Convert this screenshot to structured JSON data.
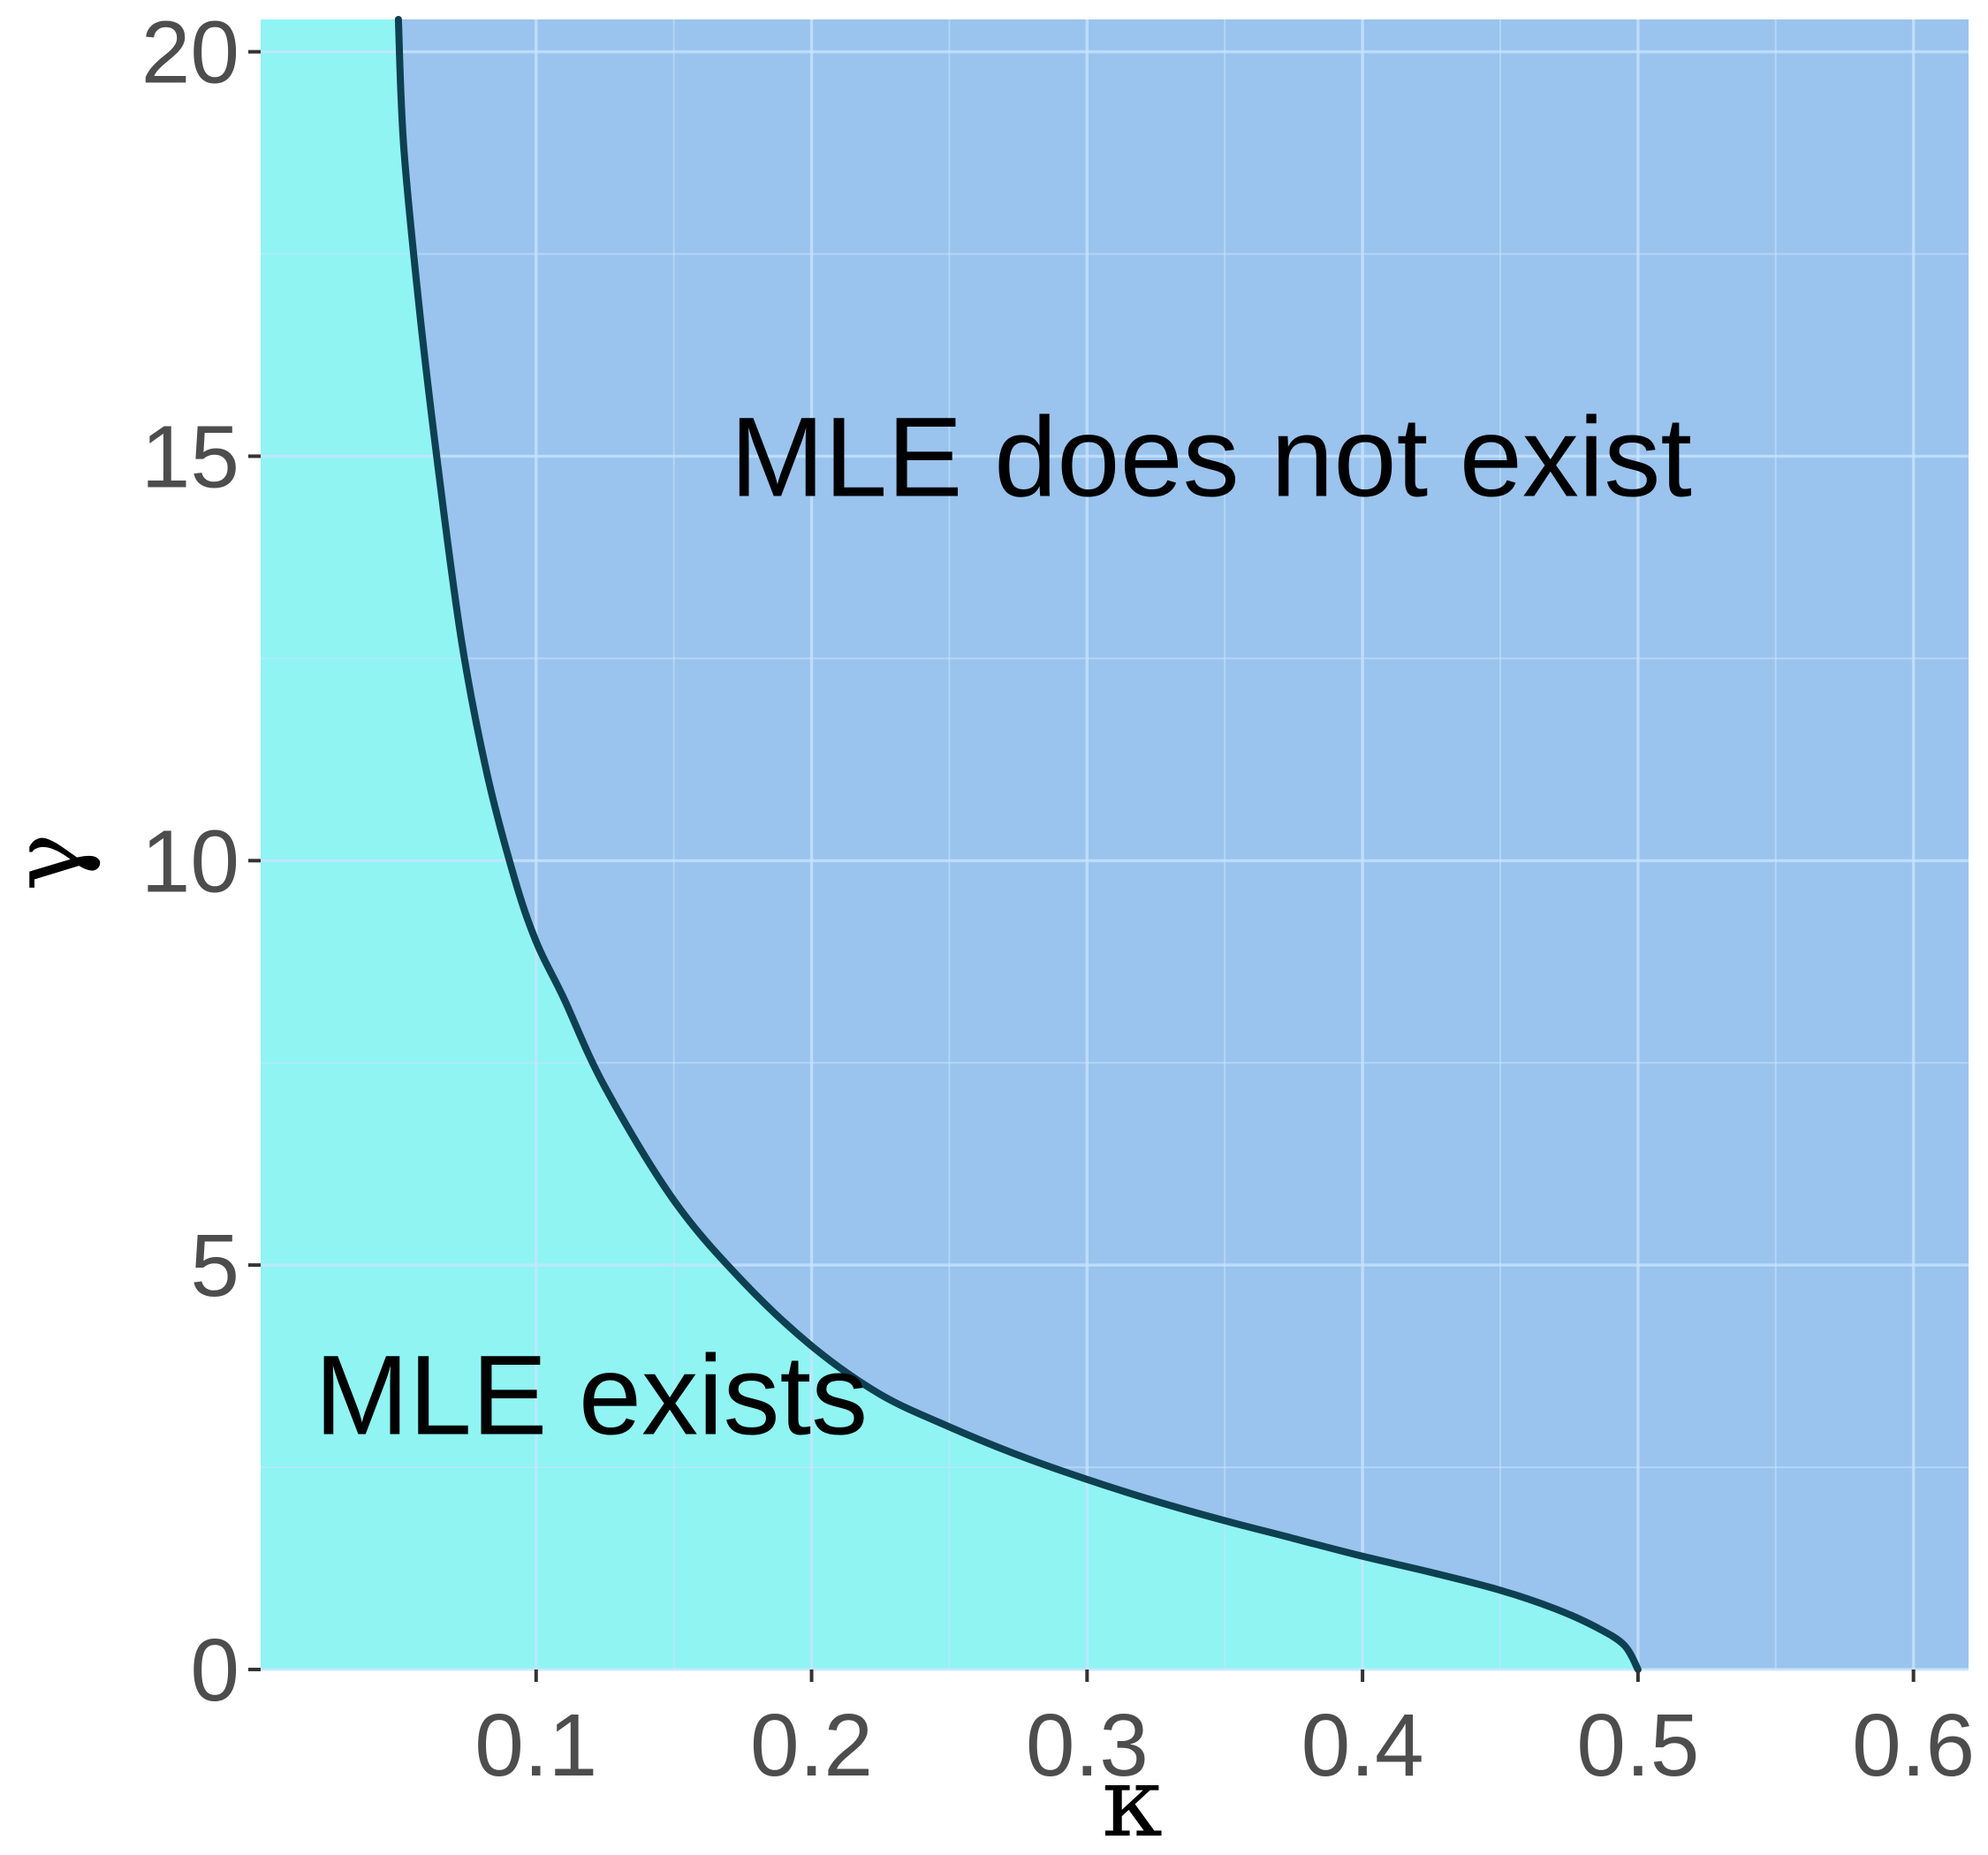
{
  "chart_data": {
    "type": "area",
    "xlabel": "κ",
    "ylabel": "γ",
    "xlim": [
      0,
      0.62
    ],
    "ylim": [
      0,
      20.4
    ],
    "x_ticks": [
      0.1,
      0.2,
      0.3,
      0.4,
      0.5,
      0.6
    ],
    "x_tick_labels": [
      "0.1",
      "0.2",
      "0.3",
      "0.4",
      "0.5",
      "0.6"
    ],
    "y_ticks": [
      0,
      5,
      10,
      15,
      20
    ],
    "y_tick_labels": [
      "0",
      "5",
      "10",
      "15",
      "20"
    ],
    "grid": true,
    "series": [
      {
        "x": [
          0.05,
          0.052,
          0.058,
          0.065,
          0.073,
          0.082,
          0.092,
          0.1,
          0.11,
          0.125,
          0.15,
          0.175,
          0.2,
          0.225,
          0.25,
          0.275,
          0.3,
          0.325,
          0.35,
          0.375,
          0.4,
          0.425,
          0.45,
          0.47,
          0.485,
          0.495,
          0.5
        ],
        "y": [
          20.4,
          18.8,
          16.7,
          14.7,
          12.7,
          11.1,
          9.8,
          9.0,
          8.3,
          7.2,
          5.8,
          4.8,
          4.0,
          3.4,
          3.0,
          2.65,
          2.35,
          2.08,
          1.84,
          1.62,
          1.4,
          1.2,
          0.98,
          0.75,
          0.52,
          0.3,
          0.0
        ]
      }
    ],
    "annotations": [
      {
        "text": "MLE does not exist",
        "x": 0.345,
        "y": 15
      },
      {
        "text": "MLE exists",
        "x": 0.12,
        "y": 3.4
      }
    ],
    "colors": {
      "exists_region": "#8ff4f2",
      "not_exists_region": "#9ac3ed",
      "boundary_line": "#0d4050",
      "grid": "#c8e4ff"
    }
  }
}
